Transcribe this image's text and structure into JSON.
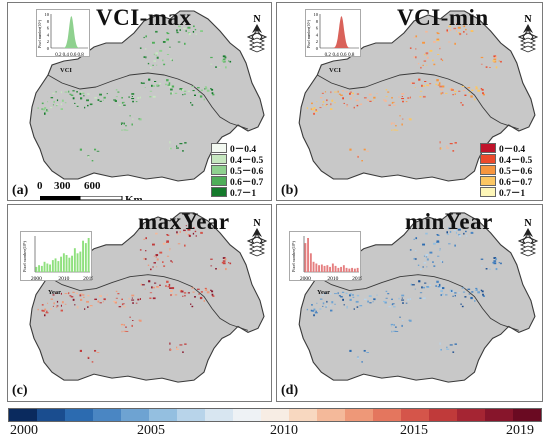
{
  "panels": [
    {
      "id": "a",
      "letter": "(a)",
      "title": "VCI-max",
      "inset": {
        "ylabel": "Pixel number(10⁵)",
        "yticks": [
          "10",
          "8",
          "6",
          "4",
          "2",
          "0"
        ],
        "xticks": [
          "0.2",
          "0.4",
          "0.6",
          "0.8"
        ],
        "xlabel": "VCI",
        "color": "#8fd18f"
      },
      "legend": [
        {
          "label": "0－0.4",
          "color": "#f3f9f1"
        },
        {
          "label": "0.4－0.5",
          "color": "#c7e8c0"
        },
        {
          "label": "0.5－0.6",
          "color": "#8fd18f"
        },
        {
          "label": "0.6－0.7",
          "color": "#4fae59"
        },
        {
          "label": "0.7－1",
          "color": "#157a2c"
        }
      ],
      "scalebar": {
        "ticks": [
          "0",
          "300",
          "600"
        ],
        "unit": "Km"
      }
    },
    {
      "id": "b",
      "letter": "(b)",
      "title": "VCI-min",
      "inset": {
        "ylabel": "Pixel number(10⁵)",
        "yticks": [
          "10",
          "8",
          "6",
          "4",
          "2",
          "0"
        ],
        "xticks": [
          "0.2",
          "0.4",
          "0.6",
          "0.8"
        ],
        "xlabel": "VCI",
        "color": "#d9625a"
      },
      "legend": [
        {
          "label": "0－0.4",
          "color": "#c0142b"
        },
        {
          "label": "0.4－0.5",
          "color": "#ec4a2c"
        },
        {
          "label": "0.5－0.6",
          "color": "#f7963f"
        },
        {
          "label": "0.6－0.7",
          "color": "#fbc763"
        },
        {
          "label": "0.7－1",
          "color": "#fdf6b8"
        }
      ]
    },
    {
      "id": "c",
      "letter": "(c)",
      "title": "maxYear",
      "inset": {
        "ylabel": "Pixel number(10⁵)",
        "yticks": [],
        "xticks": [
          "2000",
          "2010",
          "2019"
        ],
        "xlabel": "Year",
        "color": "#8fe07e",
        "values": [
          0.15,
          0.2,
          0.18,
          0.3,
          0.25,
          0.22,
          0.35,
          0.4,
          0.32,
          0.45,
          0.55,
          0.5,
          0.42,
          0.48,
          0.7,
          0.55,
          0.6,
          0.92,
          0.85,
          1.0
        ]
      }
    },
    {
      "id": "d",
      "letter": "(d)",
      "title": "minYear",
      "inset": {
        "ylabel": "Pixel number(10⁵)",
        "yticks": [],
        "xticks": [
          "2000",
          "2010",
          "2019"
        ],
        "xlabel": "Year",
        "color": "#e57f80",
        "values": [
          0.85,
          1.0,
          0.55,
          0.3,
          0.25,
          0.2,
          0.22,
          0.18,
          0.2,
          0.15,
          0.25,
          0.18,
          0.12,
          0.15,
          0.2,
          0.12,
          0.1,
          0.12,
          0.1,
          0.12
        ]
      }
    }
  ],
  "colorbar": {
    "labels": [
      "2000",
      "2005",
      "2010",
      "2015",
      "2019"
    ],
    "colors": [
      "#0a2a5e",
      "#1a4d8f",
      "#2c6bb0",
      "#4a86c3",
      "#6ea3d2",
      "#94bfe0",
      "#b8d4ea",
      "#d8e6f1",
      "#eef2f5",
      "#f7ede4",
      "#f8d8c0",
      "#f4b99a",
      "#ee9878",
      "#e4765e",
      "#d5554a",
      "#c03a3a",
      "#a52533",
      "#87152b",
      "#6a0a22"
    ]
  },
  "north": {
    "label": "N"
  }
}
